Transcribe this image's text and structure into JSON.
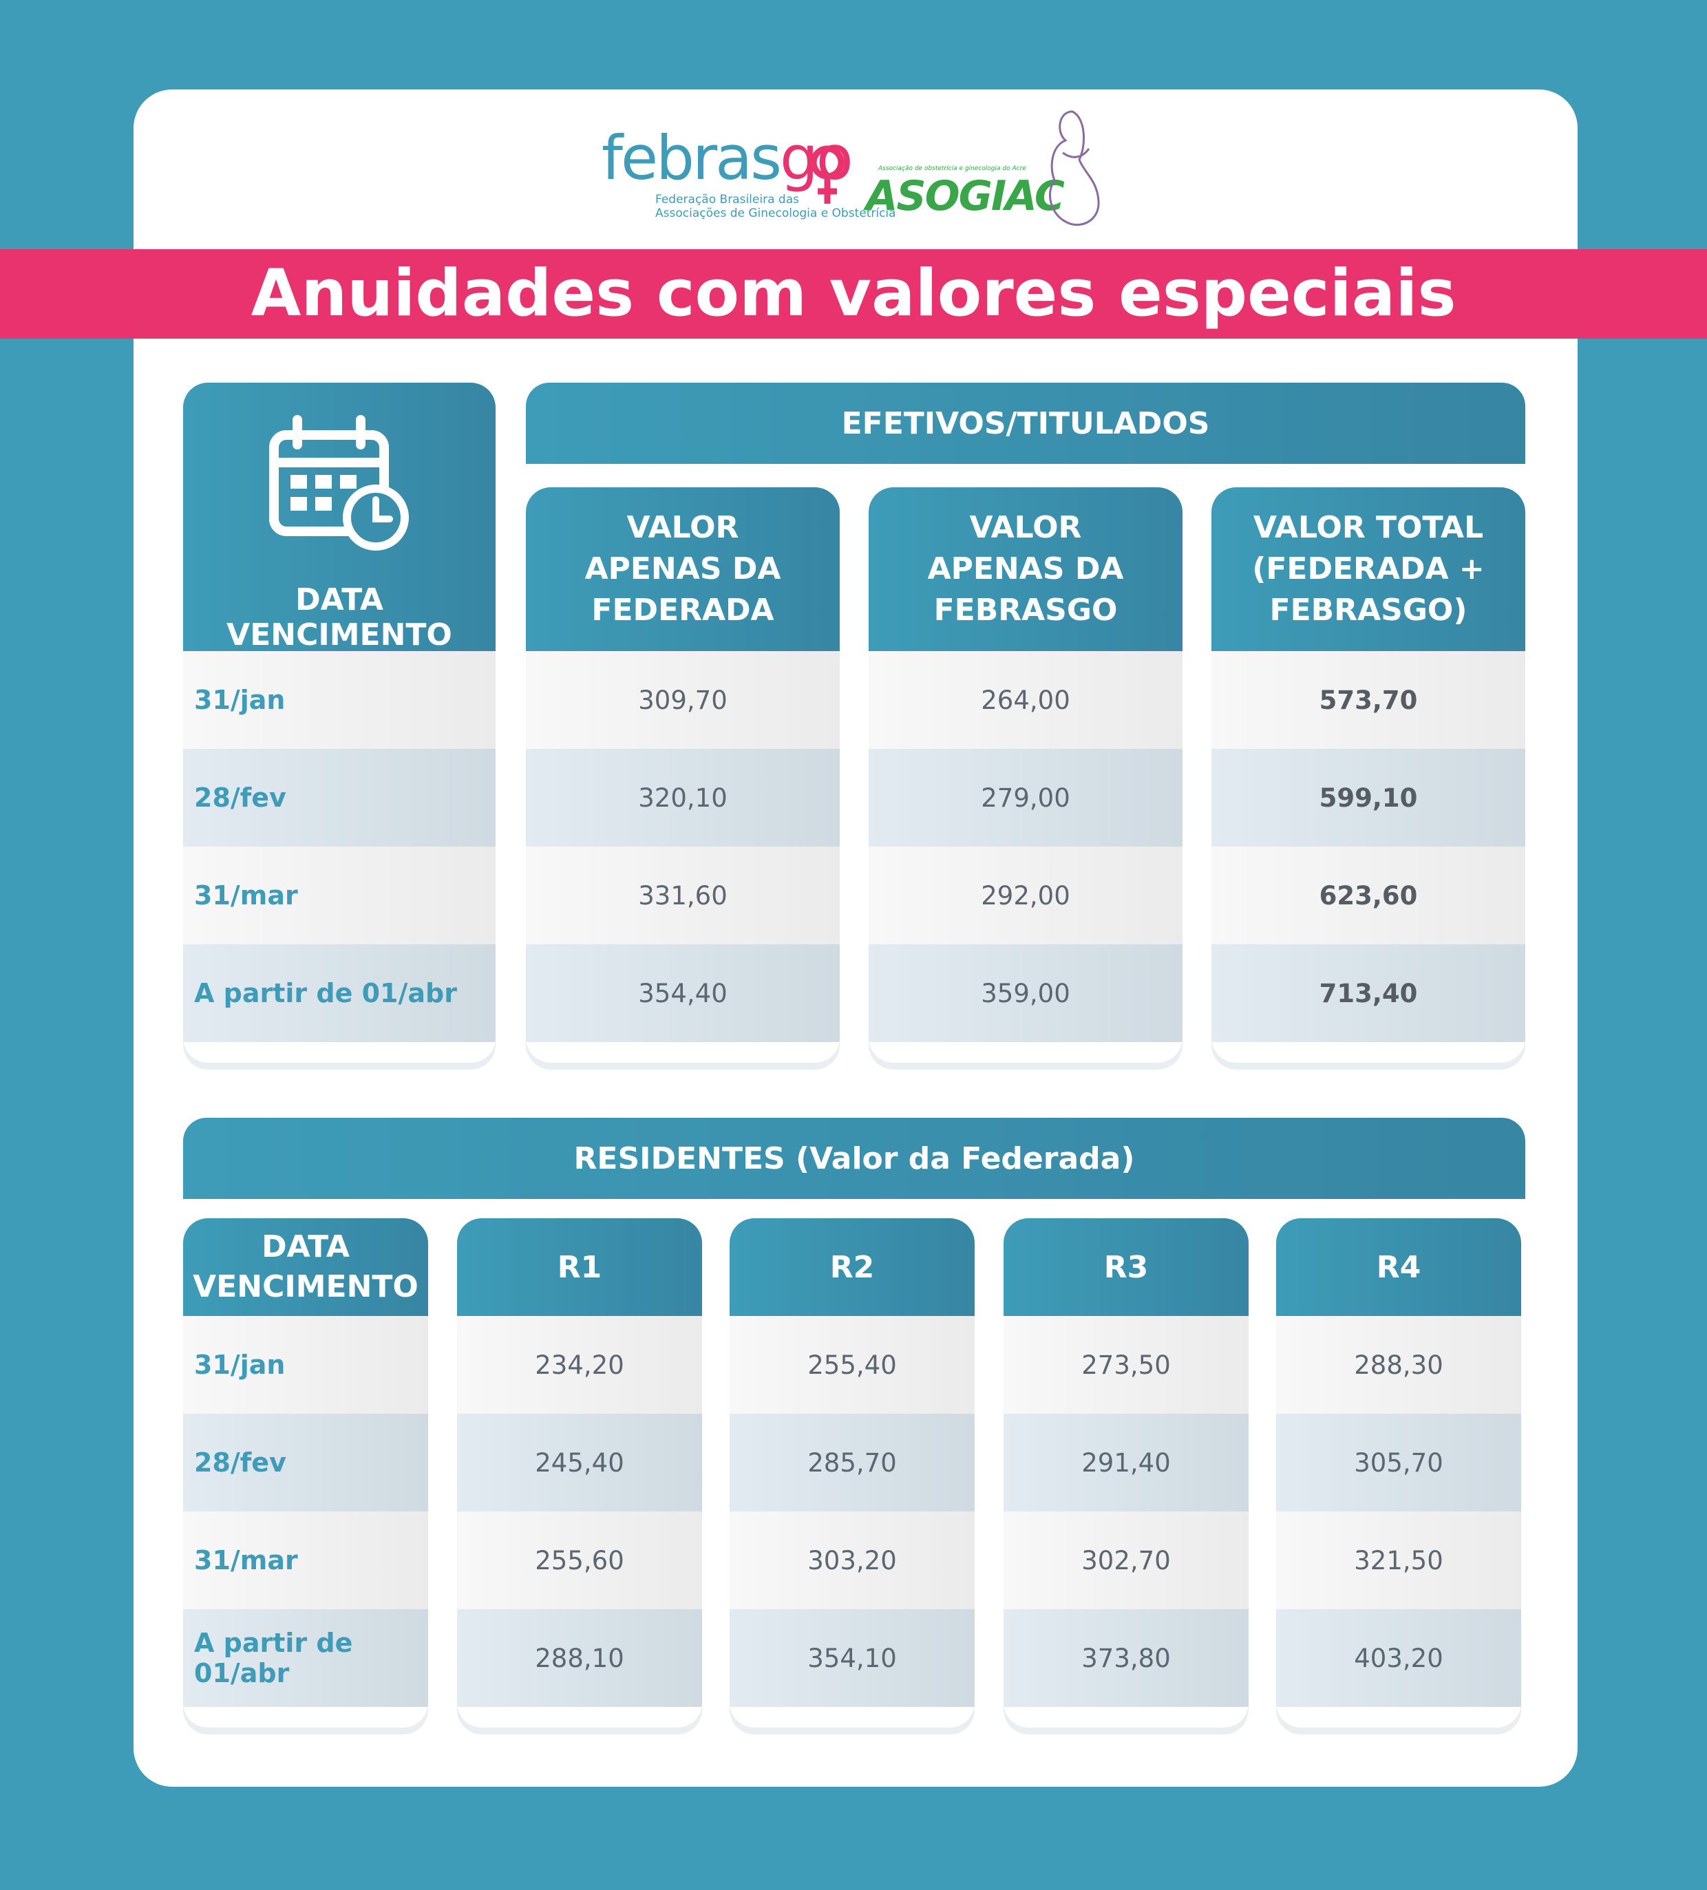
{
  "title": "Anuidades com valores especiais",
  "logos": {
    "febrasgo_word_a": "febras",
    "febrasgo_word_b": "go",
    "febrasgo_tagline_1": "Federação Brasileira das",
    "febrasgo_tagline_2": "Associações de Ginecologia e Obstetrícia",
    "asogiac_word": "ASOGIAC",
    "asogiac_tagline": "Associação de obstetrícia e ginecologia do Acre"
  },
  "efetivos": {
    "section_title": "EFETIVOS/TITULADOS",
    "date_header": "DATA VENCIMENTO",
    "col1_header": "VALOR\nAPENAS DA\nFEDERADA",
    "col2_header": "VALOR\nAPENAS DA\nFEBRASGO",
    "col3_header": "VALOR TOTAL\n(FEDERADA +\nFEBRASGO)",
    "rows": [
      {
        "date": "31/jan",
        "federada": "309,70",
        "febrasgo": "264,00",
        "total": "573,70"
      },
      {
        "date": "28/fev",
        "federada": "320,10",
        "febrasgo": "279,00",
        "total": "599,10"
      },
      {
        "date": "31/mar",
        "federada": "331,60",
        "febrasgo": "292,00",
        "total": "623,60"
      },
      {
        "date": "A partir de 01/abr",
        "federada": "354,40",
        "febrasgo": "359,00",
        "total": "713,40"
      }
    ]
  },
  "residentes": {
    "section_title": "RESIDENTES (Valor da Federada)",
    "date_header": "DATA\nVENCIMENTO",
    "headers": [
      "R1",
      "R2",
      "R3",
      "R4"
    ],
    "rows": [
      {
        "date": "31/jan",
        "values": [
          "234,20",
          "255,40",
          "273,50",
          "288,30"
        ]
      },
      {
        "date": "28/fev",
        "values": [
          "245,40",
          "285,70",
          "291,40",
          "305,70"
        ]
      },
      {
        "date": "31/mar",
        "values": [
          "255,60",
          "303,20",
          "302,70",
          "321,50"
        ]
      },
      {
        "date": "A partir de 01/abr",
        "values": [
          "288,10",
          "354,10",
          "373,80",
          "403,20"
        ]
      }
    ]
  },
  "colors": {
    "background": "#3e9cb8",
    "title_band": "#e8336f",
    "header": "#3e9cb8",
    "date_text": "#3e9cb8"
  }
}
